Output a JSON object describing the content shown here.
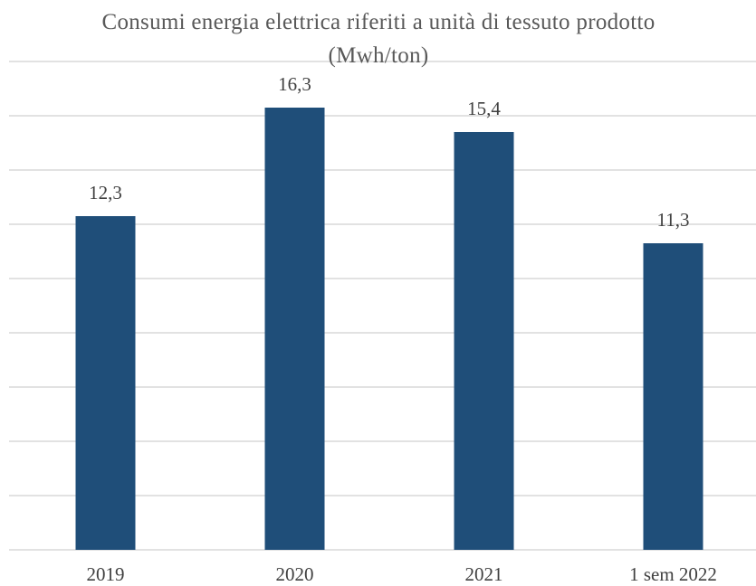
{
  "chart_data": {
    "type": "bar",
    "title": "Consumi energia elettrica riferiti a unità di tessuto prodotto (Mwh/ton)",
    "categories": [
      "2019",
      "2020",
      "2021",
      "1 sem 2022"
    ],
    "values": [
      12.3,
      16.3,
      15.4,
      11.3
    ],
    "value_labels": [
      "12,3",
      "16,3",
      "15,4",
      "11,3"
    ],
    "color": "#1f4e79",
    "ylim": [
      0,
      18
    ],
    "yticks": [
      0,
      2,
      4,
      6,
      8,
      10,
      12,
      14,
      16,
      18
    ],
    "grid": true
  }
}
